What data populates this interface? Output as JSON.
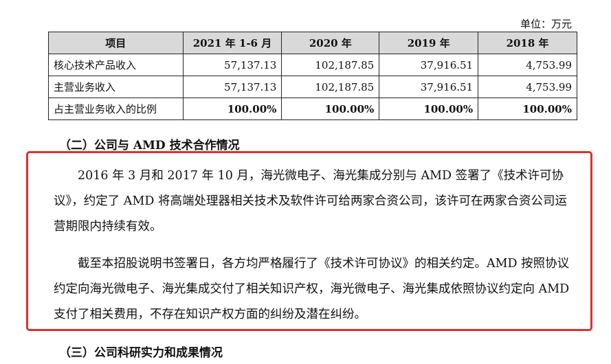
{
  "table": {
    "unit": "单位：万元",
    "headers": [
      "项目",
      "2021 年 1-6 月",
      "2020 年",
      "2019 年",
      "2018 年"
    ],
    "rows": [
      [
        "核心技术产品收入",
        "57,137.13",
        "102,187.85",
        "37,916.51",
        "4,753.99"
      ],
      [
        "主营业务收入",
        "57,137.13",
        "102,187.85",
        "37,916.51",
        "4,753.99"
      ],
      [
        "占主营业务收入的比例",
        "100.00%",
        "100.00%",
        "100.00%",
        "100.00%"
      ]
    ]
  },
  "section2": {
    "heading": "（二）公司与 AMD 技术合作情况",
    "para1": "2016 年 3 月和 2017 年 10 月，海光微电子、海光集成分别与 AMD 签署了《技术许可协议》，约定了 AMD 将高端处理器相关技术及软件许可给两家合资公司，该许可在两家合资公司运营期限内持续有效。",
    "para2": "截至本招股说明书签署日，各方均严格履行了《技术许可协议》的相关约定。AMD 按照协议约定向海光微电子、海光集成交付了相关知识产权，海光微电子、海光集成依照协议约定向 AMD 支付了相关费用，不存在知识产权方面的纠纷及潜在纠纷。"
  },
  "section3": {
    "heading": "（三）公司科研实力和成果情况"
  },
  "colors": {
    "highlight_border": "#e0302c",
    "header_bg": "#d9d9d9"
  }
}
